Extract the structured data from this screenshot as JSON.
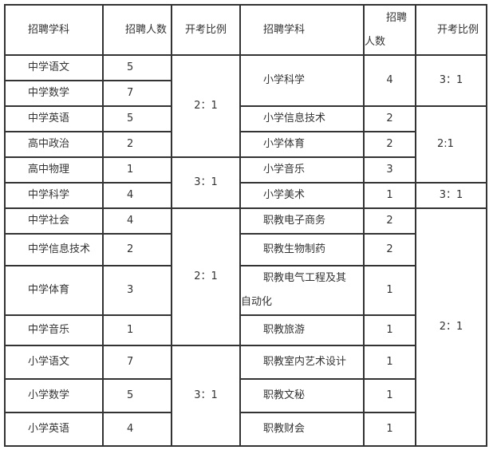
{
  "headers": {
    "subject": "招聘学科",
    "count": "招聘人数",
    "ratio": "开考比例",
    "count_r1": "招聘",
    "count_r2": "人数"
  },
  "left": [
    {
      "subject": "中学语文",
      "count": "5"
    },
    {
      "subject": "中学数学",
      "count": "7"
    },
    {
      "subject": "中学英语",
      "count": "5"
    },
    {
      "subject": "高中政治",
      "count": "2"
    },
    {
      "subject": "高中物理",
      "count": "1"
    },
    {
      "subject": "中学科学",
      "count": "4"
    },
    {
      "subject": "中学社会",
      "count": "4"
    },
    {
      "subject": "中学信息技术",
      "count": "2"
    },
    {
      "subject": "中学体育",
      "count": "3"
    },
    {
      "subject": "中学音乐",
      "count": "1"
    },
    {
      "subject": "小学语文",
      "count": "7"
    },
    {
      "subject": "小学数学",
      "count": "5"
    },
    {
      "subject": "小学英语",
      "count": "4"
    }
  ],
  "left_ratios": [
    "2：1",
    "3：1",
    "2：1",
    "3：1"
  ],
  "right": [
    {
      "subject": "小学科学",
      "count": "4"
    },
    {
      "subject": "小学信息技术",
      "count": "2"
    },
    {
      "subject": "小学体育",
      "count": "2"
    },
    {
      "subject": "小学音乐",
      "count": "3"
    },
    {
      "subject": "小学美术",
      "count": "1"
    },
    {
      "subject": "职教电子商务",
      "count": "2"
    },
    {
      "subject": "职教生物制药",
      "count": "2"
    },
    {
      "subject": "职教电气工程及其",
      "subject_cont": "自动化",
      "count": "1"
    },
    {
      "subject": "职教旅游",
      "count": "1"
    },
    {
      "subject": "职教室内艺术设计",
      "count": "1"
    },
    {
      "subject": "职教文秘",
      "count": "1"
    },
    {
      "subject": "职教财会",
      "count": "1"
    }
  ],
  "right_ratios": [
    "3：1",
    "2:1",
    "3：1",
    "2：1"
  ]
}
